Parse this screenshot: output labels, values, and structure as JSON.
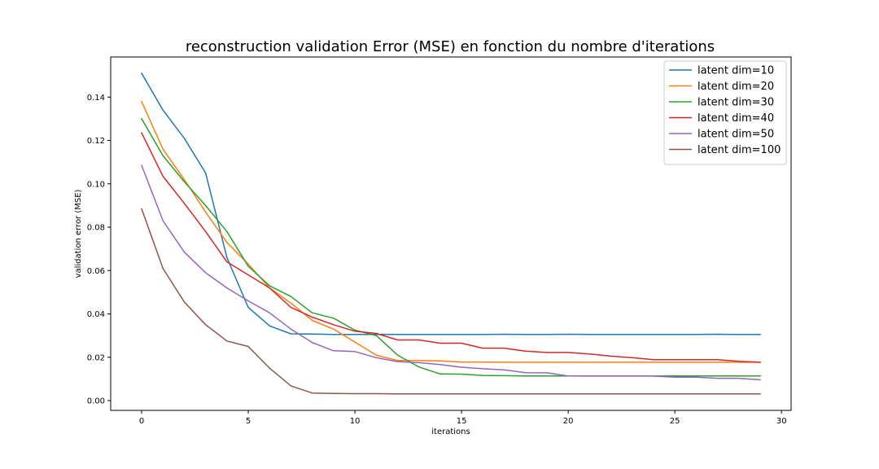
{
  "chart_data": {
    "type": "line",
    "title": "reconstruction validation Error (MSE) en fonction du nombre d'iterations",
    "xlabel": "iterations",
    "ylabel": "validation error (MSE)",
    "xlim": [
      -1.45,
      30.45
    ],
    "ylim": [
      -0.0045,
      0.1585
    ],
    "xticks": [
      0,
      5,
      10,
      15,
      20,
      25,
      30
    ],
    "xtick_labels": [
      "0",
      "5",
      "10",
      "15",
      "20",
      "25",
      "30"
    ],
    "yticks": [
      0.0,
      0.02,
      0.04,
      0.06,
      0.08,
      0.1,
      0.12,
      0.14
    ],
    "ytick_labels": [
      "0.00",
      "0.02",
      "0.04",
      "0.06",
      "0.08",
      "0.10",
      "0.12",
      "0.14"
    ],
    "grid": false,
    "legend_position": "top-right",
    "x": [
      0,
      1,
      2,
      3,
      4,
      5,
      6,
      7,
      8,
      9,
      10,
      11,
      12,
      13,
      14,
      15,
      16,
      17,
      18,
      19,
      20,
      21,
      22,
      23,
      24,
      25,
      26,
      27,
      28,
      29
    ],
    "series": [
      {
        "name": "latent dim=10",
        "color": "#1f77b4",
        "values": [
          0.151,
          0.134,
          0.121,
          0.105,
          0.066,
          0.043,
          0.0345,
          0.0308,
          0.0307,
          0.0305,
          0.0305,
          0.0305,
          0.0305,
          0.0305,
          0.0305,
          0.0305,
          0.0305,
          0.0306,
          0.0305,
          0.0305,
          0.0306,
          0.0305,
          0.0305,
          0.0305,
          0.0305,
          0.0305,
          0.0305,
          0.0306,
          0.0305,
          0.0305
        ]
      },
      {
        "name": "latent dim=20",
        "color": "#ff7f0e",
        "values": [
          0.138,
          0.116,
          0.102,
          0.087,
          0.073,
          0.063,
          0.052,
          0.045,
          0.037,
          0.033,
          0.027,
          0.021,
          0.0185,
          0.0185,
          0.0183,
          0.0178,
          0.0178,
          0.0177,
          0.0177,
          0.0177,
          0.0177,
          0.0177,
          0.0177,
          0.0177,
          0.0177,
          0.0177,
          0.0177,
          0.0177,
          0.0177,
          0.0177
        ]
      },
      {
        "name": "latent dim=30",
        "color": "#2ca02c",
        "values": [
          0.13,
          0.113,
          0.101,
          0.09,
          0.078,
          0.062,
          0.053,
          0.048,
          0.0405,
          0.038,
          0.0325,
          0.03,
          0.021,
          0.0155,
          0.0123,
          0.0122,
          0.0116,
          0.0115,
          0.0114,
          0.0114,
          0.0114,
          0.0114,
          0.0114,
          0.0114,
          0.0114,
          0.0114,
          0.0114,
          0.0114,
          0.0114,
          0.0114
        ]
      },
      {
        "name": "latent dim=40",
        "color": "#d62728",
        "values": [
          0.1235,
          0.1035,
          0.091,
          0.078,
          0.064,
          0.058,
          0.052,
          0.043,
          0.0385,
          0.035,
          0.032,
          0.031,
          0.028,
          0.028,
          0.0265,
          0.0265,
          0.0242,
          0.0242,
          0.0228,
          0.0222,
          0.0222,
          0.0215,
          0.0205,
          0.0198,
          0.0189,
          0.0189,
          0.0189,
          0.0189,
          0.0181,
          0.0177
        ]
      },
      {
        "name": "latent dim=50",
        "color": "#9467bd",
        "values": [
          0.1085,
          0.083,
          0.0685,
          0.059,
          0.052,
          0.046,
          0.0405,
          0.033,
          0.0268,
          0.023,
          0.0226,
          0.0198,
          0.018,
          0.0175,
          0.0166,
          0.0154,
          0.0147,
          0.0142,
          0.0129,
          0.0128,
          0.0114,
          0.0113,
          0.0113,
          0.0113,
          0.0113,
          0.0108,
          0.0108,
          0.0103,
          0.0103,
          0.0096
        ]
      },
      {
        "name": "latent dim=100",
        "color": "#8c564b",
        "values": [
          0.0885,
          0.061,
          0.0455,
          0.035,
          0.0275,
          0.025,
          0.015,
          0.0068,
          0.0035,
          0.0033,
          0.0032,
          0.0032,
          0.0031,
          0.0031,
          0.0031,
          0.0031,
          0.0031,
          0.0031,
          0.0031,
          0.0031,
          0.0031,
          0.0031,
          0.0031,
          0.0031,
          0.0031,
          0.0031,
          0.0031,
          0.0031,
          0.0031,
          0.0031
        ]
      }
    ]
  }
}
